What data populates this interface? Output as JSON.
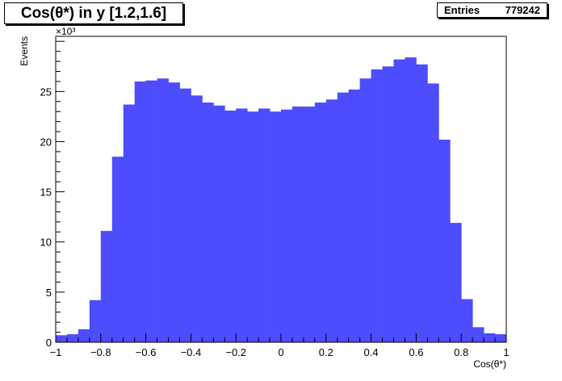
{
  "chart_data": {
    "type": "bar",
    "title": "Cos(θ*) in y [1.2,1.6]",
    "xlabel": "Cos(θ*)",
    "ylabel": "Events",
    "y_multiplier": "×10³",
    "xlim": [
      -1,
      1
    ],
    "ylim": [
      0,
      30.5
    ],
    "x_tick_labels": [
      "−1",
      "−0.8",
      "−0.6",
      "−0.4",
      "−0.2",
      "0",
      "0.2",
      "0.4",
      "0.6",
      "0.8",
      "1"
    ],
    "y_tick_labels": [
      "0",
      "5",
      "10",
      "15",
      "20",
      "25"
    ],
    "bin_edges": [
      -1,
      1
    ],
    "bin_width": 0.05,
    "values": [
      0.7,
      0.8,
      1.3,
      4.2,
      11.1,
      18.5,
      23.7,
      26.0,
      26.1,
      26.3,
      25.9,
      25.3,
      24.6,
      23.9,
      23.6,
      23.1,
      23.3,
      23.0,
      23.3,
      23.0,
      23.2,
      23.5,
      23.5,
      23.9,
      24.2,
      24.9,
      25.2,
      26.3,
      27.2,
      27.5,
      28.2,
      28.4,
      27.7,
      25.8,
      20.2,
      11.9,
      4.3,
      1.5,
      0.9,
      0.8
    ],
    "fill_color": "#4d4dff",
    "grid": false,
    "legend": "none"
  },
  "stats": {
    "entries_label": "Entries",
    "entries_value": "779242"
  }
}
